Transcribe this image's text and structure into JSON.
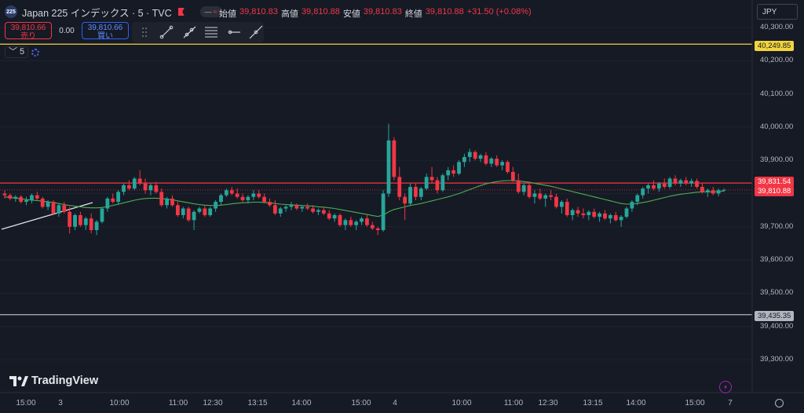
{
  "header": {
    "symbol_badge": "225",
    "title": "Japan 225 インデックス · 5 · TVC",
    "pill_a": "—",
    "pill_b": "≈"
  },
  "ohlc": {
    "open_label": "始値",
    "open": "39,810.83",
    "high_label": "高値",
    "high": "39,810.88",
    "low_label": "安値",
    "low": "39,810.83",
    "close_label": "終値",
    "close": "39,810.88",
    "change": "+31.50 (+0.08%)"
  },
  "trade": {
    "sell_price": "39,810.66",
    "sell_label": "売り",
    "spread": "0.00",
    "buy_price": "39,810.66",
    "buy_label": "買い"
  },
  "drawing_tools": [
    "dots-handle-icon",
    "trend-line-icon",
    "ray-icon",
    "fib-retracement-icon",
    "horizontal-ray-icon",
    "extended-line-icon"
  ],
  "interval": {
    "chevron": "﹀",
    "value": "5"
  },
  "currency": "JPY",
  "price_axis": {
    "ticks": [
      "40,300.00",
      "40,200.00",
      "40,100.00",
      "40,000.00",
      "39,900.00",
      "39,700.00",
      "39,600.00",
      "39,500.00",
      "39,400.00",
      "39,300.00"
    ],
    "tags": {
      "yellow": "40,249.85",
      "red1": "39,831.54",
      "red2": "39,810.88",
      "gray": "39,435.35"
    }
  },
  "time_axis": {
    "labels": [
      "15:00",
      "3",
      "10:00",
      "11:00",
      "12:30",
      "13:15",
      "14:00",
      "15:00",
      "4",
      "10:00",
      "11:00",
      "12:30",
      "13:15",
      "14:00",
      "15:00",
      "7"
    ]
  },
  "brand": "TradingView",
  "colors": {
    "up": "#26a69a",
    "down": "#f23645",
    "ma": "#4caf50",
    "bg": "#161a25",
    "yellow_line": "#f2d43d",
    "red_line": "#f23645",
    "gray_line": "#b2b5be"
  },
  "chart_data": {
    "type": "candlestick",
    "y_range": [
      39250,
      40350
    ],
    "horizontal_lines": [
      40249.85,
      39831.54,
      39435.35
    ],
    "last_price": 39810.88,
    "candles": [
      [
        39800,
        39810,
        39785,
        39795
      ],
      [
        39795,
        39800,
        39780,
        39785
      ],
      [
        39785,
        39795,
        39775,
        39790
      ],
      [
        39790,
        39795,
        39770,
        39775
      ],
      [
        39775,
        39790,
        39765,
        39780
      ],
      [
        39780,
        39800,
        39770,
        39795
      ],
      [
        39795,
        39805,
        39780,
        39785
      ],
      [
        39785,
        39790,
        39755,
        39760
      ],
      [
        39760,
        39780,
        39750,
        39775
      ],
      [
        39775,
        39780,
        39735,
        39740
      ],
      [
        39740,
        39770,
        39730,
        39765
      ],
      [
        39765,
        39775,
        39740,
        39745
      ],
      [
        39745,
        39760,
        39680,
        39700
      ],
      [
        39700,
        39740,
        39690,
        39735
      ],
      [
        39735,
        39745,
        39700,
        39705
      ],
      [
        39705,
        39730,
        39690,
        39725
      ],
      [
        39725,
        39740,
        39680,
        39690
      ],
      [
        39690,
        39720,
        39675,
        39715
      ],
      [
        39715,
        39760,
        39710,
        39755
      ],
      [
        39755,
        39790,
        39745,
        39785
      ],
      [
        39785,
        39800,
        39770,
        39775
      ],
      [
        39775,
        39810,
        39765,
        39805
      ],
      [
        39805,
        39830,
        39795,
        39825
      ],
      [
        39825,
        39840,
        39810,
        39815
      ],
      [
        39815,
        39850,
        39810,
        39845
      ],
      [
        39845,
        39870,
        39825,
        39830
      ],
      [
        39830,
        39845,
        39800,
        39810
      ],
      [
        39810,
        39830,
        39795,
        39825
      ],
      [
        39825,
        39835,
        39800,
        39805
      ],
      [
        39805,
        39815,
        39760,
        39765
      ],
      [
        39765,
        39790,
        39755,
        39785
      ],
      [
        39785,
        39795,
        39760,
        39765
      ],
      [
        39765,
        39775,
        39730,
        39735
      ],
      [
        39735,
        39760,
        39725,
        39755
      ],
      [
        39755,
        39760,
        39715,
        39720
      ],
      [
        39720,
        39750,
        39690,
        39745
      ],
      [
        39745,
        39760,
        39740,
        39755
      ],
      [
        39755,
        39765,
        39730,
        39735
      ],
      [
        39735,
        39760,
        39730,
        39755
      ],
      [
        39755,
        39780,
        39745,
        39775
      ],
      [
        39775,
        39800,
        39765,
        39795
      ],
      [
        39795,
        39815,
        39790,
        39810
      ],
      [
        39810,
        39820,
        39795,
        39800
      ],
      [
        39800,
        39815,
        39785,
        39790
      ],
      [
        39790,
        39800,
        39775,
        39780
      ],
      [
        39780,
        39795,
        39770,
        39790
      ],
      [
        39790,
        39810,
        39780,
        39800
      ],
      [
        39800,
        39810,
        39785,
        39790
      ],
      [
        39790,
        39800,
        39770,
        39775
      ],
      [
        39775,
        39785,
        39760,
        39765
      ],
      [
        39765,
        39780,
        39735,
        39740
      ],
      [
        39740,
        39760,
        39730,
        39755
      ],
      [
        39755,
        39765,
        39745,
        39760
      ],
      [
        39760,
        39775,
        39750,
        39765
      ],
      [
        39765,
        39770,
        39750,
        39755
      ],
      [
        39755,
        39765,
        39745,
        39760
      ],
      [
        39760,
        39770,
        39750,
        39755
      ],
      [
        39755,
        39765,
        39740,
        39745
      ],
      [
        39745,
        39755,
        39735,
        39750
      ],
      [
        39750,
        39760,
        39735,
        39740
      ],
      [
        39740,
        39750,
        39720,
        39725
      ],
      [
        39725,
        39740,
        39715,
        39735
      ],
      [
        39735,
        39740,
        39700,
        39705
      ],
      [
        39705,
        39725,
        39690,
        39720
      ],
      [
        39720,
        39730,
        39700,
        39705
      ],
      [
        39705,
        39720,
        39690,
        39715
      ],
      [
        39715,
        39730,
        39705,
        39725
      ],
      [
        39725,
        39735,
        39700,
        39705
      ],
      [
        39705,
        39715,
        39690,
        39695
      ],
      [
        39695,
        39700,
        39675,
        39690
      ],
      [
        39690,
        39810,
        39685,
        39800
      ],
      [
        39800,
        40010,
        39790,
        39960
      ],
      [
        39960,
        39970,
        39840,
        39850
      ],
      [
        39850,
        39880,
        39780,
        39790
      ],
      [
        39790,
        39800,
        39720,
        39770
      ],
      [
        39770,
        39830,
        39765,
        39820
      ],
      [
        39820,
        39830,
        39780,
        39790
      ],
      [
        39790,
        39820,
        39780,
        39815
      ],
      [
        39815,
        39860,
        39810,
        39850
      ],
      [
        39850,
        39880,
        39830,
        39840
      ],
      [
        39840,
        39850,
        39800,
        39810
      ],
      [
        39810,
        39860,
        39805,
        39855
      ],
      [
        39855,
        39880,
        39840,
        39870
      ],
      [
        39870,
        39885,
        39850,
        39860
      ],
      [
        39860,
        39900,
        39855,
        39895
      ],
      [
        39895,
        39920,
        39880,
        39910
      ],
      [
        39910,
        39935,
        39895,
        39925
      ],
      [
        39925,
        39930,
        39900,
        39905
      ],
      [
        39905,
        39920,
        39895,
        39915
      ],
      [
        39915,
        39925,
        39885,
        39890
      ],
      [
        39890,
        39910,
        39880,
        39905
      ],
      [
        39905,
        39915,
        39880,
        39885
      ],
      [
        39885,
        39900,
        39870,
        39895
      ],
      [
        39895,
        39900,
        39860,
        39865
      ],
      [
        39865,
        39880,
        39835,
        39840
      ],
      [
        39840,
        39860,
        39800,
        39805
      ],
      [
        39805,
        39830,
        39795,
        39825
      ],
      [
        39825,
        39835,
        39785,
        39790
      ],
      [
        39790,
        39810,
        39770,
        39800
      ],
      [
        39800,
        39815,
        39780,
        39785
      ],
      [
        39785,
        39800,
        39760,
        39795
      ],
      [
        39795,
        39810,
        39780,
        39790
      ],
      [
        39790,
        39800,
        39755,
        39760
      ],
      [
        39760,
        39780,
        39740,
        39775
      ],
      [
        39775,
        39785,
        39730,
        39735
      ],
      [
        39735,
        39755,
        39720,
        39750
      ],
      [
        39750,
        39760,
        39730,
        39740
      ],
      [
        39740,
        39755,
        39725,
        39735
      ],
      [
        39735,
        39750,
        39720,
        39745
      ],
      [
        39745,
        39755,
        39725,
        39730
      ],
      [
        39730,
        39745,
        39715,
        39740
      ],
      [
        39740,
        39750,
        39720,
        39725
      ],
      [
        39725,
        39740,
        39710,
        39735
      ],
      [
        39735,
        39745,
        39715,
        39720
      ],
      [
        39720,
        39735,
        39700,
        39730
      ],
      [
        39730,
        39760,
        39725,
        39755
      ],
      [
        39755,
        39780,
        39745,
        39775
      ],
      [
        39775,
        39800,
        39765,
        39795
      ],
      [
        39795,
        39820,
        39785,
        39815
      ],
      [
        39815,
        39830,
        39800,
        39825
      ],
      [
        39825,
        39840,
        39810,
        39815
      ],
      [
        39815,
        39835,
        39805,
        39830
      ],
      [
        39830,
        39845,
        39815,
        39820
      ],
      [
        39820,
        39850,
        39815,
        39845
      ],
      [
        39845,
        39855,
        39825,
        39830
      ],
      [
        39830,
        39845,
        39820,
        39840
      ],
      [
        39840,
        39850,
        39825,
        39830
      ],
      [
        39830,
        39845,
        39820,
        39838
      ],
      [
        39838,
        39845,
        39815,
        39820
      ],
      [
        39820,
        39830,
        39800,
        39805
      ],
      [
        39805,
        39815,
        39790,
        39810
      ],
      [
        39810,
        39820,
        39795,
        39800
      ],
      [
        39800,
        39815,
        39792,
        39810
      ],
      [
        39810,
        39815,
        39805,
        39811
      ]
    ],
    "ma": [
      39790,
      39788,
      39786,
      39784,
      39782,
      39780,
      39779,
      39777,
      39775,
      39773,
      39770,
      39767,
      39764,
      39762,
      39760,
      39758,
      39757,
      39757,
      39758,
      39761,
      39764,
      39768,
      39772,
      39776,
      39780,
      39783,
      39785,
      39786,
      39786,
      39785,
      39783,
      39781,
      39778,
      39775,
      39772,
      39769,
      39767,
      39765,
      39764,
      39764,
      39765,
      39767,
      39769,
      39771,
      39772,
      39773,
      39774,
      39774,
      39773,
      39772,
      39770,
      39768,
      39767,
      39766,
      39765,
      39764,
      39763,
      39762,
      39760,
      39759,
      39757,
      39755,
      39752,
      39749,
      39746,
      39743,
      39740,
      39737,
      39734,
      39731,
      39735,
      39745,
      39752,
      39756,
      39760,
      39764,
      39767,
      39770,
      39774,
      39778,
      39782,
      39786,
      39790,
      39795,
      39800,
      39806,
      39812,
      39818,
      39824,
      39829,
      39833,
      39836,
      39838,
      39839,
      39839,
      39838,
      39836,
      39834,
      39831,
      39828,
      39825,
      39822,
      39818,
      39814,
      39810,
      39806,
      39802,
      39798,
      39794,
      39790,
      39786,
      39782,
      39778,
      39774,
      39770,
      39768,
      39768,
      39770,
      39773,
      39776,
      39780,
      39784,
      39788,
      39792,
      39795,
      39798,
      39800,
      39802,
      39804,
      39805,
      39805,
      39805,
      39806,
      39807
    ]
  }
}
